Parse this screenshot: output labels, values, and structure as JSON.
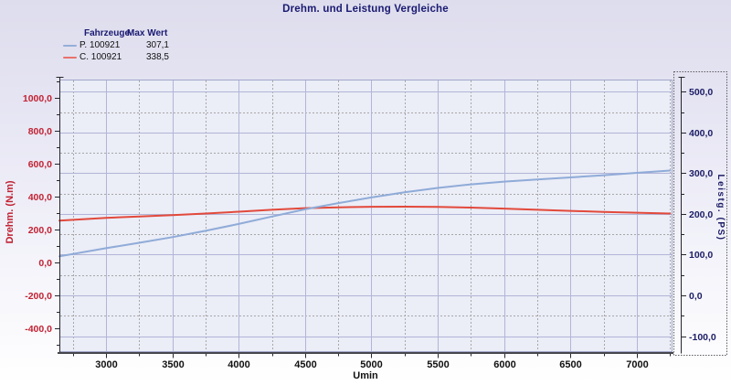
{
  "legend": {
    "col_vehicle": "Fahrzeuge",
    "col_max": "Max Wert",
    "rows": [
      {
        "label": "P. 100921",
        "max": "307,1",
        "color": "#94aed8"
      },
      {
        "label": "C. 100921",
        "max": "338,5",
        "color": "#e8736b"
      }
    ]
  },
  "chart_data": {
    "type": "line",
    "title": "Drehm. und Leistung Vergleiche",
    "x_rpm": [
      2650,
      3000,
      3250,
      3500,
      3750,
      4000,
      4250,
      4500,
      4750,
      5000,
      5250,
      5500,
      5750,
      6000,
      6250,
      6500,
      6750,
      7000,
      7250
    ],
    "series": [
      {
        "name": "P. 100921",
        "axis": "right",
        "unit": "PS",
        "max_wert": 307.1,
        "color": "#8fabd8",
        "values": [
          95.8,
          115.8,
          129.1,
          143.0,
          158.6,
          175.4,
          193.6,
          211.4,
          226.6,
          240.6,
          253.0,
          263.9,
          272.6,
          279.4,
          284.8,
          289.7,
          295.1,
          301.0,
          306.6
        ]
      },
      {
        "name": "C. 100921",
        "axis": "left",
        "unit": "N.m",
        "max_wert": 338.5,
        "color": "#e2493b",
        "values": [
          254,
          271,
          279,
          287,
          297,
          308,
          320,
          330,
          335,
          338,
          338.5,
          337,
          333,
          327,
          320,
          313,
          307,
          302,
          297
        ]
      }
    ],
    "x_axis": {
      "label": "Umin",
      "domain": [
        2649,
        7262
      ],
      "major_ticks": [
        3000,
        3500,
        4000,
        4500,
        5000,
        5500,
        6000,
        6500,
        7000
      ],
      "minor_ticks": [
        2750,
        3250,
        3750,
        4250,
        4750,
        5250,
        5750,
        6250,
        6750,
        7250
      ],
      "tick_color": "#111111"
    },
    "left_axis": {
      "label": "Drehm. (N.m)",
      "color": "#c22233",
      "domain": [
        -539,
        1111
      ],
      "major_ticks": [
        1000,
        800,
        600,
        400,
        200,
        0,
        -200,
        -400
      ],
      "minor_ticks": [
        1100,
        900,
        700,
        500,
        300,
        100,
        -100,
        -300,
        -500
      ]
    },
    "right_axis": {
      "label": "Leistg. (PS)",
      "color": "#1c1c66",
      "domain": [
        -137,
        530
      ],
      "major_ticks": [
        500,
        400,
        300,
        200,
        100,
        0,
        -100
      ],
      "minor_ticks": [
        450,
        350,
        250,
        150,
        50,
        -50
      ],
      "selected": true
    },
    "grid": {
      "major_color": "#b2b5d7",
      "minor_color": "#a8a8a8",
      "plot_bg": "#ebedf7",
      "plot_border": "#a2a6ca"
    }
  }
}
